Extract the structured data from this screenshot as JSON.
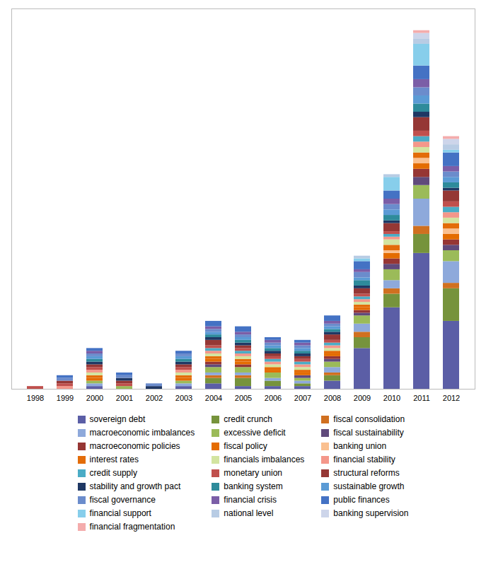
{
  "chart_data": {
    "type": "bar",
    "stacked": true,
    "categories": [
      "1998",
      "1999",
      "2000",
      "2001",
      "2002",
      "2003",
      "2004",
      "2005",
      "2006",
      "2007",
      "2008",
      "2009",
      "2010",
      "2011",
      "2012"
    ],
    "series": [
      {
        "name": "sovereign debt",
        "color": "#5B5EA6",
        "values": [
          0,
          0,
          1,
          0,
          0,
          1,
          2,
          1,
          1,
          1,
          3,
          15,
          30,
          50,
          25
        ]
      },
      {
        "name": "credit crunch",
        "color": "#76933C",
        "values": [
          0,
          0,
          0,
          0,
          0,
          0,
          2,
          3,
          2,
          1,
          2,
          4,
          5,
          7,
          12
        ]
      },
      {
        "name": "fiscal consolidation",
        "color": "#D07020",
        "values": [
          0,
          0,
          0,
          0,
          0,
          0,
          1,
          1,
          0,
          0,
          1,
          2,
          2,
          3,
          2
        ]
      },
      {
        "name": "macroeconomic imbalances",
        "color": "#8EA9DB",
        "values": [
          0,
          0,
          1,
          0,
          0,
          1,
          1,
          1,
          1,
          1,
          2,
          3,
          3,
          10,
          8
        ]
      },
      {
        "name": "excessive deficit",
        "color": "#9BBB59",
        "values": [
          0,
          0,
          1,
          1,
          0,
          1,
          2,
          2,
          2,
          1,
          2,
          3,
          4,
          5,
          4
        ]
      },
      {
        "name": "fiscal sustainability",
        "color": "#604A7B",
        "values": [
          0,
          0,
          0,
          0,
          0,
          0,
          1,
          0,
          0,
          1,
          1,
          1,
          2,
          3,
          2
        ]
      },
      {
        "name": "macroeconomic policies",
        "color": "#963634",
        "values": [
          0,
          0,
          0,
          0,
          0,
          0,
          1,
          1,
          0,
          0,
          1,
          1,
          2,
          3,
          2
        ]
      },
      {
        "name": "fiscal policy",
        "color": "#E46C00",
        "values": [
          0,
          0,
          1,
          0,
          0,
          1,
          1,
          1,
          1,
          1,
          1,
          1,
          2,
          2,
          2
        ]
      },
      {
        "name": "banking union",
        "color": "#FAC090",
        "values": [
          0,
          0,
          0,
          0,
          0,
          0,
          0,
          0,
          0,
          0,
          0,
          0,
          1,
          2,
          2
        ]
      },
      {
        "name": "interest rates",
        "color": "#E36C09",
        "values": [
          0,
          0,
          1,
          0,
          0,
          1,
          1,
          1,
          1,
          1,
          1,
          1,
          2,
          2,
          2
        ]
      },
      {
        "name": "financials imbalances",
        "color": "#D3E4A0",
        "values": [
          0,
          0,
          1,
          0,
          0,
          1,
          1,
          1,
          1,
          1,
          1,
          1,
          2,
          2,
          2
        ]
      },
      {
        "name": "financial stability",
        "color": "#F4978A",
        "values": [
          0,
          1,
          1,
          0,
          0,
          1,
          1,
          1,
          1,
          1,
          1,
          1,
          1,
          2,
          2
        ]
      },
      {
        "name": "credit supply",
        "color": "#4BACC6",
        "values": [
          0,
          0,
          0,
          0,
          0,
          0,
          1,
          1,
          1,
          1,
          1,
          1,
          1,
          2,
          2
        ]
      },
      {
        "name": "monetary union",
        "color": "#C0504D",
        "values": [
          1,
          1,
          1,
          1,
          0,
          1,
          1,
          1,
          1,
          1,
          1,
          1,
          1,
          2,
          2
        ]
      },
      {
        "name": "structural reforms",
        "color": "#953735",
        "values": [
          0,
          1,
          1,
          1,
          0,
          1,
          2,
          1,
          1,
          1,
          2,
          2,
          3,
          5,
          4
        ]
      },
      {
        "name": "stability and growth pact",
        "color": "#1F3864",
        "values": [
          0,
          0,
          1,
          1,
          1,
          1,
          1,
          1,
          1,
          1,
          1,
          1,
          1,
          2,
          1
        ]
      },
      {
        "name": "banking system",
        "color": "#2E8B9B",
        "values": [
          0,
          0,
          1,
          0,
          0,
          1,
          1,
          1,
          1,
          1,
          1,
          2,
          2,
          3,
          2
        ]
      },
      {
        "name": "sustainable growth",
        "color": "#5B9BD5",
        "values": [
          0,
          0,
          1,
          0,
          0,
          1,
          1,
          1,
          1,
          1,
          1,
          1,
          2,
          3,
          2
        ]
      },
      {
        "name": "fiscal governance",
        "color": "#6B8CCC",
        "values": [
          0,
          1,
          1,
          1,
          1,
          1,
          1,
          1,
          1,
          1,
          1,
          2,
          2,
          3,
          2
        ]
      },
      {
        "name": "financial crisis",
        "color": "#7B5EA7",
        "values": [
          0,
          0,
          1,
          0,
          0,
          0,
          1,
          1,
          1,
          1,
          1,
          1,
          2,
          3,
          2
        ]
      },
      {
        "name": "public finances",
        "color": "#4472C4",
        "values": [
          0,
          1,
          1,
          1,
          0,
          1,
          2,
          2,
          1,
          1,
          2,
          3,
          3,
          5,
          5
        ]
      },
      {
        "name": "financial support",
        "color": "#87CEEB",
        "values": [
          0,
          0,
          0,
          0,
          0,
          0,
          0,
          0,
          0,
          0,
          0,
          1,
          5,
          8,
          1
        ]
      },
      {
        "name": "national level",
        "color": "#B8CCE4",
        "values": [
          0,
          0,
          0,
          0,
          0,
          0,
          0,
          0,
          0,
          0,
          0,
          1,
          1,
          2,
          2
        ]
      },
      {
        "name": "banking supervision",
        "color": "#CDD5EA",
        "values": [
          0,
          0,
          0,
          0,
          0,
          0,
          0,
          0,
          0,
          0,
          0,
          0,
          0,
          2,
          2
        ]
      },
      {
        "name": "financial fragmentation",
        "color": "#F4ACAC",
        "values": [
          0,
          0,
          0,
          0,
          0,
          0,
          0,
          0,
          0,
          0,
          0,
          0,
          0,
          1,
          1
        ]
      }
    ],
    "ylim": [
      0,
      140
    ],
    "tick_labels": "x",
    "grid": false,
    "legend": "bottom"
  }
}
